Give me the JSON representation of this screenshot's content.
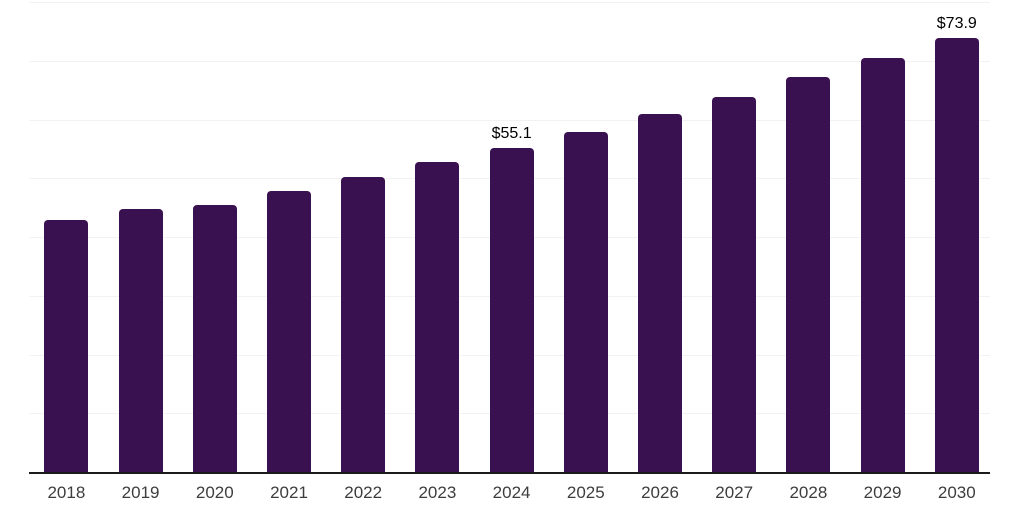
{
  "chart_data": {
    "type": "bar",
    "title": "",
    "xlabel": "",
    "ylabel": "",
    "categories": [
      "2018",
      "2019",
      "2020",
      "2021",
      "2022",
      "2023",
      "2024",
      "2025",
      "2026",
      "2027",
      "2028",
      "2029",
      "2030"
    ],
    "values": [
      42.9,
      44.8,
      45.5,
      47.9,
      50.2,
      52.7,
      55.1,
      57.9,
      60.9,
      63.9,
      67.2,
      70.5,
      73.9
    ],
    "data_labels": [
      "",
      "",
      "",
      "",
      "",
      "",
      "$55.1",
      "",
      "",
      "",
      "",
      "",
      "$73.9"
    ],
    "ylim": [
      0,
      80
    ],
    "grid_interval": 10,
    "grid_visible": true,
    "legend": "none",
    "colors": {
      "bar": "#3A1150",
      "gridline": "#F2F2F2",
      "axis_line": "#1B1B1B",
      "tick_label": "#3D3D3D",
      "data_label": "#000000",
      "background": "#FFFFFF"
    }
  }
}
